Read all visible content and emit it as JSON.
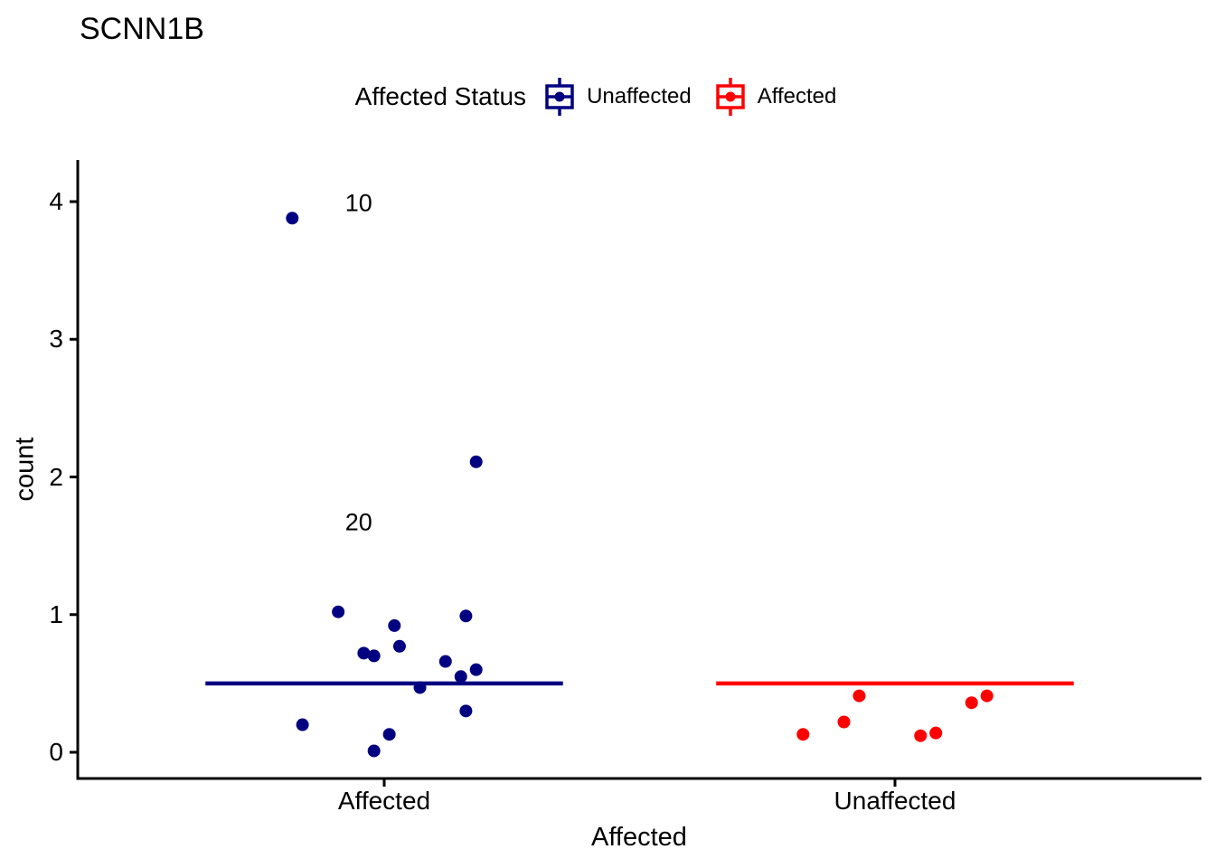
{
  "title": "SCNN1B",
  "legend": {
    "title": "Affected Status",
    "items": [
      {
        "label": "Unaffected",
        "color": "#000080"
      },
      {
        "label": "Affected",
        "color": "#FF0000"
      }
    ]
  },
  "chart_data": {
    "type": "scatter",
    "subtype": "jitter-points-with-crossbar-mean",
    "title": "SCNN1B",
    "xlabel": "Affected",
    "ylabel": "count",
    "categories": [
      "Affected",
      "Unaffected"
    ],
    "category_positions": [
      1,
      2
    ],
    "y_ticks": [
      "0",
      "1",
      "2",
      "3",
      "4"
    ],
    "y_tick_values": [
      0,
      1,
      2,
      3,
      4
    ],
    "ylim": [
      -0.19,
      4.3
    ],
    "xlim": [
      0.4,
      2.6
    ],
    "grid": false,
    "legend_position": "top",
    "series": [
      {
        "name": "Unaffected",
        "color": "#000080",
        "category": "Affected",
        "points": [
          {
            "x": 0.82,
            "y": 3.88
          },
          {
            "x": 1.18,
            "y": 2.11
          },
          {
            "x": 0.91,
            "y": 1.02
          },
          {
            "x": 1.16,
            "y": 0.99
          },
          {
            "x": 1.02,
            "y": 0.92
          },
          {
            "x": 1.03,
            "y": 0.77
          },
          {
            "x": 0.96,
            "y": 0.72
          },
          {
            "x": 0.98,
            "y": 0.7
          },
          {
            "x": 1.12,
            "y": 0.66
          },
          {
            "x": 1.18,
            "y": 0.6
          },
          {
            "x": 1.15,
            "y": 0.55
          },
          {
            "x": 1.07,
            "y": 0.47
          },
          {
            "x": 1.16,
            "y": 0.3
          },
          {
            "x": 0.84,
            "y": 0.2
          },
          {
            "x": 1.01,
            "y": 0.13
          },
          {
            "x": 0.98,
            "y": 0.01
          }
        ]
      },
      {
        "name": "Affected",
        "color": "#FF0000",
        "category": "Unaffected",
        "points": [
          {
            "x": 1.93,
            "y": 0.41
          },
          {
            "x": 1.9,
            "y": 0.22
          },
          {
            "x": 1.82,
            "y": 0.13
          },
          {
            "x": 2.05,
            "y": 0.12
          },
          {
            "x": 2.08,
            "y": 0.14
          },
          {
            "x": 2.15,
            "y": 0.36
          },
          {
            "x": 2.18,
            "y": 0.41
          }
        ]
      }
    ],
    "crossbars": [
      {
        "series": "Unaffected",
        "color": "#000080",
        "x_center": 1,
        "half_width": 0.35,
        "y": 0.5
      },
      {
        "series": "Affected",
        "color": "#FF0000",
        "x_center": 2,
        "half_width": 0.35,
        "y": 0.5
      }
    ],
    "annotations": [
      {
        "text": "10",
        "x": 0.95,
        "y": 3.99
      },
      {
        "text": "20",
        "x": 0.95,
        "y": 1.67
      }
    ]
  }
}
